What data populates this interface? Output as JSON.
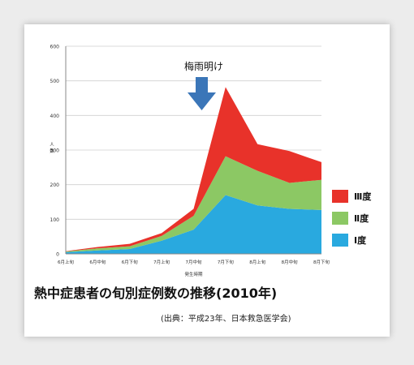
{
  "chart_data": {
    "type": "area",
    "stacked": true,
    "categories": [
      "6月上旬",
      "6月中旬",
      "6月下旬",
      "7月上旬",
      "7月中旬",
      "7月下旬",
      "8月上旬",
      "8月中旬",
      "8月下旬"
    ],
    "series": [
      {
        "name": "Ⅰ度",
        "color": "#29a9df",
        "values": [
          5,
          10,
          14,
          38,
          70,
          170,
          140,
          130,
          127
        ]
      },
      {
        "name": "Ⅱ度",
        "color": "#8cc864",
        "values": [
          2,
          6,
          8,
          14,
          40,
          112,
          100,
          75,
          87
        ]
      },
      {
        "name": "Ⅲ度",
        "color": "#e8322a",
        "values": [
          1,
          4,
          7,
          8,
          20,
          200,
          77,
          92,
          51
        ]
      }
    ],
    "ylim": [
      0,
      600
    ],
    "yticks": [
      0,
      100,
      200,
      300,
      400,
      500,
      600
    ],
    "ylabel": "人数",
    "xlabel": "発生時期",
    "annotation": "梅雨明け",
    "legend_position": "right",
    "grid": "horizontal"
  },
  "caption": {
    "title": "熱中症患者の旬別症例数の推移(2010年)",
    "source": "(出典：平成23年、日本救急医学会)"
  }
}
